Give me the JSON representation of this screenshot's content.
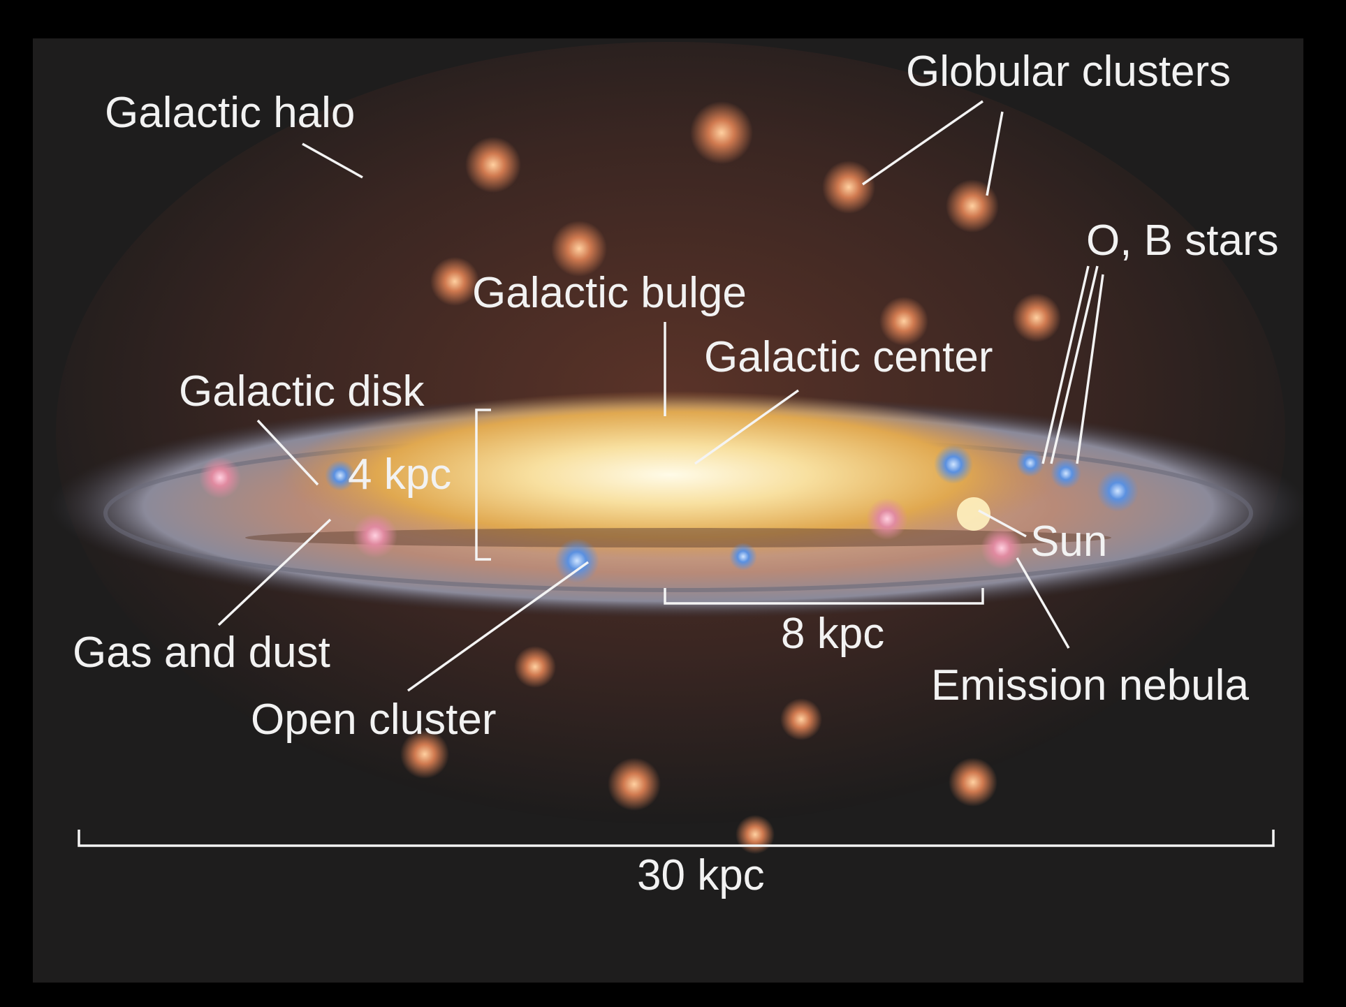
{
  "labels": [
    "Galactic halo",
    "Globular clusters",
    "O, B stars",
    "Galactic bulge",
    "Galactic center",
    "Galactic disk",
    "4 kpc",
    "Sun",
    "Gas and dust",
    "Open cluster",
    "8 kpc",
    "Emission nebula",
    "30 kpc"
  ]
}
